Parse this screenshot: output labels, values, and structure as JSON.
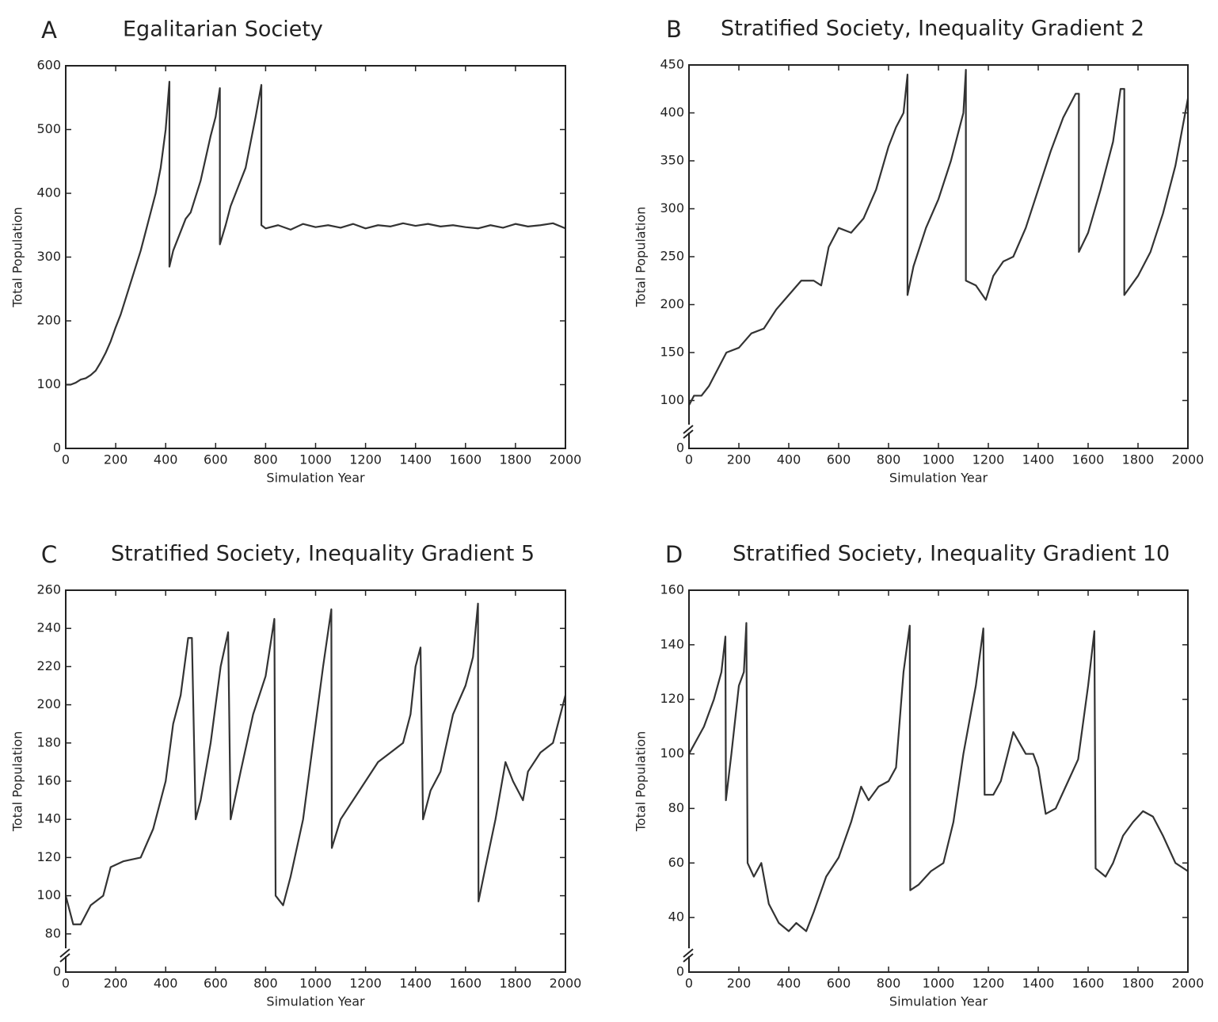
{
  "chart_data": [
    {
      "type": "line",
      "panel": "A",
      "title": "Egalitarian Society",
      "xlabel": "Simulation Year",
      "ylabel": "Total Population",
      "color": "#333333",
      "xlim": [
        0,
        2000
      ],
      "xticks": [
        0,
        200,
        400,
        600,
        800,
        1000,
        1200,
        1400,
        1600,
        1800,
        2000
      ],
      "ylim": [
        0,
        600
      ],
      "yticks": [
        0,
        100,
        200,
        300,
        400,
        500,
        600
      ],
      "axis_break": false,
      "x": [
        0,
        20,
        40,
        60,
        80,
        100,
        120,
        140,
        160,
        180,
        200,
        220,
        240,
        260,
        280,
        300,
        320,
        340,
        360,
        380,
        400,
        415,
        415,
        430,
        460,
        480,
        500,
        520,
        540,
        560,
        580,
        600,
        617,
        617,
        640,
        660,
        680,
        700,
        720,
        740,
        760,
        783,
        783,
        800,
        850,
        900,
        950,
        1000,
        1050,
        1100,
        1150,
        1200,
        1250,
        1300,
        1350,
        1400,
        1450,
        1500,
        1550,
        1600,
        1650,
        1700,
        1750,
        1800,
        1850,
        1900,
        1950,
        2000
      ],
      "values": [
        100,
        100,
        103,
        108,
        110,
        115,
        122,
        135,
        150,
        168,
        190,
        210,
        235,
        260,
        285,
        310,
        340,
        370,
        400,
        440,
        500,
        575,
        285,
        310,
        340,
        360,
        370,
        395,
        420,
        455,
        490,
        520,
        565,
        320,
        350,
        380,
        400,
        420,
        440,
        480,
        520,
        570,
        350,
        345,
        350,
        343,
        352,
        347,
        350,
        346,
        352,
        345,
        350,
        348,
        353,
        349,
        352,
        348,
        350,
        347,
        345,
        350,
        346,
        352,
        348,
        350,
        353,
        345
      ]
    },
    {
      "type": "line",
      "panel": "B",
      "title": "Stratified Society, Inequality Gradient 2",
      "xlabel": "Simulation Year",
      "ylabel": "Total Population",
      "color": "#333333",
      "xlim": [
        0,
        2000
      ],
      "xticks": [
        0,
        200,
        400,
        600,
        800,
        1000,
        1200,
        1400,
        1600,
        1800,
        2000
      ],
      "ylim": [
        50,
        450
      ],
      "yticks": [
        {
          "value": 50,
          "label": "0"
        },
        100,
        150,
        200,
        250,
        300,
        350,
        400,
        450
      ],
      "axis_break": true,
      "x": [
        0,
        20,
        50,
        80,
        100,
        150,
        200,
        250,
        300,
        350,
        400,
        450,
        500,
        530,
        560,
        600,
        650,
        700,
        750,
        800,
        830,
        860,
        876,
        876,
        900,
        950,
        1000,
        1050,
        1080,
        1100,
        1110,
        1110,
        1150,
        1190,
        1220,
        1260,
        1300,
        1350,
        1400,
        1450,
        1500,
        1550,
        1563,
        1563,
        1600,
        1650,
        1700,
        1730,
        1745,
        1745,
        1800,
        1850,
        1900,
        1950,
        2000
      ],
      "values": [
        95,
        105,
        105,
        115,
        125,
        150,
        155,
        170,
        175,
        195,
        210,
        225,
        225,
        220,
        260,
        280,
        275,
        290,
        320,
        365,
        385,
        400,
        440,
        210,
        240,
        280,
        310,
        350,
        380,
        400,
        445,
        225,
        220,
        205,
        230,
        245,
        250,
        280,
        320,
        360,
        395,
        420,
        420,
        255,
        275,
        320,
        370,
        425,
        425,
        210,
        230,
        255,
        295,
        345,
        415
      ]
    },
    {
      "type": "line",
      "panel": "C",
      "title": "Stratified Society, Inequality Gradient 5",
      "xlabel": "Simulation Year",
      "ylabel": "Total Population",
      "color": "#333333",
      "xlim": [
        0,
        2000
      ],
      "xticks": [
        0,
        200,
        400,
        600,
        800,
        1000,
        1200,
        1400,
        1600,
        1800,
        2000
      ],
      "ylim": [
        60,
        260
      ],
      "yticks": [
        {
          "value": 60,
          "label": "0"
        },
        80,
        100,
        120,
        140,
        160,
        180,
        200,
        220,
        240,
        260
      ],
      "axis_break": true,
      "x": [
        0,
        30,
        60,
        100,
        150,
        180,
        230,
        300,
        350,
        400,
        430,
        460,
        490,
        505,
        520,
        540,
        580,
        620,
        650,
        660,
        700,
        750,
        800,
        835,
        840,
        870,
        900,
        950,
        990,
        1030,
        1063,
        1065,
        1100,
        1150,
        1200,
        1250,
        1300,
        1350,
        1380,
        1400,
        1420,
        1430,
        1460,
        1500,
        1550,
        1600,
        1630,
        1650,
        1652,
        1680,
        1720,
        1760,
        1790,
        1830,
        1850,
        1900,
        1950,
        2000
      ],
      "values": [
        100,
        85,
        85,
        95,
        100,
        115,
        118,
        120,
        135,
        160,
        190,
        205,
        235,
        235,
        140,
        150,
        180,
        220,
        238,
        140,
        165,
        195,
        215,
        245,
        100,
        95,
        110,
        140,
        180,
        220,
        250,
        125,
        140,
        150,
        160,
        170,
        175,
        180,
        195,
        220,
        230,
        140,
        155,
        165,
        195,
        210,
        225,
        253,
        97,
        115,
        140,
        170,
        160,
        150,
        165,
        175,
        180,
        205
      ]
    },
    {
      "type": "line",
      "panel": "D",
      "title": "Stratified Society, Inequality Gradient 10",
      "xlabel": "Simulation Year",
      "ylabel": "Total Population",
      "color": "#333333",
      "xlim": [
        0,
        2000
      ],
      "xticks": [
        0,
        200,
        400,
        600,
        800,
        1000,
        1200,
        1400,
        1600,
        1800,
        2000
      ],
      "ylim": [
        20,
        160
      ],
      "yticks": [
        {
          "value": 20,
          "label": "0"
        },
        40,
        60,
        80,
        100,
        120,
        140,
        160
      ],
      "axis_break": true,
      "x": [
        0,
        30,
        60,
        100,
        130,
        146,
        148,
        170,
        200,
        220,
        230,
        235,
        260,
        290,
        320,
        360,
        400,
        430,
        470,
        500,
        550,
        600,
        650,
        690,
        720,
        760,
        800,
        830,
        860,
        885,
        887,
        920,
        970,
        1020,
        1060,
        1100,
        1150,
        1180,
        1185,
        1220,
        1250,
        1300,
        1350,
        1380,
        1400,
        1430,
        1470,
        1520,
        1560,
        1600,
        1625,
        1630,
        1670,
        1700,
        1740,
        1780,
        1820,
        1860,
        1900,
        1950,
        2000
      ],
      "values": [
        100,
        105,
        110,
        120,
        130,
        143,
        83,
        100,
        125,
        130,
        148,
        60,
        55,
        60,
        45,
        38,
        35,
        38,
        35,
        42,
        55,
        62,
        75,
        88,
        83,
        88,
        90,
        95,
        130,
        147,
        50,
        52,
        57,
        60,
        75,
        100,
        125,
        146,
        85,
        85,
        90,
        108,
        100,
        100,
        95,
        78,
        80,
        90,
        98,
        125,
        145,
        58,
        55,
        60,
        70,
        75,
        79,
        77,
        70,
        60,
        57
      ]
    }
  ]
}
